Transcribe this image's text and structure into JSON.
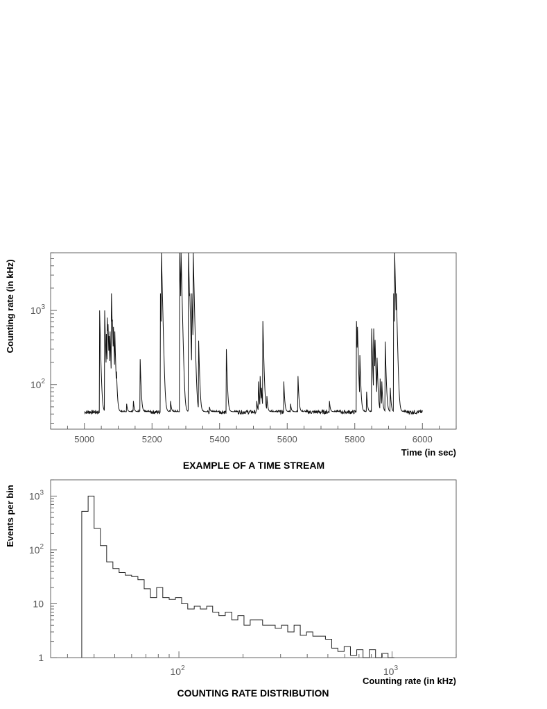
{
  "chart_data": [
    {
      "type": "line",
      "title": "EXAMPLE OF A TIME STREAM",
      "xlabel": "Time (in sec)",
      "ylabel": "Counting rate (in kHz)",
      "xlim": [
        4900,
        6100
      ],
      "ylim": [
        25,
        6000
      ],
      "yscale": "log",
      "x_ticks": [
        5000,
        5200,
        5400,
        5600,
        5800,
        6000
      ],
      "y_ticks": [
        {
          "base": "10",
          "exp": "2",
          "value": 100
        },
        {
          "base": "10",
          "exp": "3",
          "value": 1000
        }
      ],
      "baseline_kHz": 43,
      "series": [
        {
          "x_range": [
            5000,
            6000
          ],
          "spikes": [
            {
              "t": 5045,
              "v": 1000
            },
            {
              "t": 5050,
              "v": 95
            },
            {
              "t": 5060,
              "v": 1000
            },
            {
              "t": 5065,
              "v": 480
            },
            {
              "t": 5068,
              "v": 800
            },
            {
              "t": 5070,
              "v": 650
            },
            {
              "t": 5073,
              "v": 450
            },
            {
              "t": 5076,
              "v": 520
            },
            {
              "t": 5080,
              "v": 1700
            },
            {
              "t": 5083,
              "v": 750
            },
            {
              "t": 5086,
              "v": 600
            },
            {
              "t": 5090,
              "v": 520
            },
            {
              "t": 5095,
              "v": 150
            },
            {
              "t": 5125,
              "v": 55
            },
            {
              "t": 5145,
              "v": 60
            },
            {
              "t": 5165,
              "v": 220
            },
            {
              "t": 5225,
              "v": 1700
            },
            {
              "t": 5228,
              "v": 6000
            },
            {
              "t": 5255,
              "v": 60
            },
            {
              "t": 5282,
              "v": 6000
            },
            {
              "t": 5286,
              "v": 6000
            },
            {
              "t": 5308,
              "v": 6000
            },
            {
              "t": 5312,
              "v": 1700
            },
            {
              "t": 5318,
              "v": 1700
            },
            {
              "t": 5322,
              "v": 6000
            },
            {
              "t": 5326,
              "v": 1000
            },
            {
              "t": 5338,
              "v": 390
            },
            {
              "t": 5370,
              "v": 50
            },
            {
              "t": 5420,
              "v": 300
            },
            {
              "t": 5424,
              "v": 50
            },
            {
              "t": 5510,
              "v": 60
            },
            {
              "t": 5515,
              "v": 110
            },
            {
              "t": 5520,
              "v": 130
            },
            {
              "t": 5524,
              "v": 90
            },
            {
              "t": 5528,
              "v": 720
            },
            {
              "t": 5532,
              "v": 120
            },
            {
              "t": 5540,
              "v": 70
            },
            {
              "t": 5590,
              "v": 110
            },
            {
              "t": 5610,
              "v": 55
            },
            {
              "t": 5632,
              "v": 130
            },
            {
              "t": 5725,
              "v": 60
            },
            {
              "t": 5805,
              "v": 720
            },
            {
              "t": 5808,
              "v": 600
            },
            {
              "t": 5815,
              "v": 250
            },
            {
              "t": 5835,
              "v": 80
            },
            {
              "t": 5850,
              "v": 570
            },
            {
              "t": 5856,
              "v": 570
            },
            {
              "t": 5860,
              "v": 400
            },
            {
              "t": 5866,
              "v": 230
            },
            {
              "t": 5875,
              "v": 120
            },
            {
              "t": 5880,
              "v": 110
            },
            {
              "t": 5890,
              "v": 380
            },
            {
              "t": 5905,
              "v": 90
            },
            {
              "t": 5915,
              "v": 1700
            },
            {
              "t": 5918,
              "v": 6000
            },
            {
              "t": 5920,
              "v": 1700
            },
            {
              "t": 5923,
              "v": 1700
            }
          ]
        }
      ]
    },
    {
      "type": "histogram",
      "title": "COUNTING RATE DISTRIBUTION",
      "xlabel": "Counting rate (in kHz)",
      "ylabel": "Events per bin",
      "xscale": "log",
      "yscale": "log",
      "xlim": [
        25,
        2000
      ],
      "ylim": [
        1,
        2000
      ],
      "x_ticks": [
        {
          "base": "10",
          "exp": "2",
          "value": 100
        },
        {
          "base": "10",
          "exp": "3",
          "value": 1000
        }
      ],
      "y_ticks": [
        {
          "base": "1",
          "exp": "",
          "value": 1
        },
        {
          "base": "10",
          "exp": "",
          "value": 10
        },
        {
          "base": "10",
          "exp": "2",
          "value": 100
        },
        {
          "base": "10",
          "exp": "3",
          "value": 1000
        }
      ],
      "bin_left_edges": [
        35,
        37.5,
        40,
        42.8,
        45.8,
        49,
        52.4,
        56,
        60,
        64.2,
        68.7,
        73.5,
        78.6,
        84,
        90,
        96.3,
        103,
        110,
        118,
        126,
        135,
        144,
        154,
        165,
        177,
        189,
        202,
        216,
        231,
        247,
        265,
        283,
        303,
        324,
        347,
        371,
        397,
        425,
        455,
        487,
        521,
        557,
        596,
        638,
        683,
        731,
        782,
        837,
        895,
        958,
        1025
      ],
      "bin_counts": [
        520,
        1000,
        250,
        120,
        60,
        45,
        38,
        34,
        32,
        28,
        19,
        13,
        20,
        13,
        12,
        13,
        10,
        8,
        9,
        8,
        9,
        7,
        6,
        7,
        5,
        6,
        4,
        5,
        5,
        4,
        4,
        3.5,
        4,
        3,
        4,
        2.6,
        3,
        2.5,
        2.5,
        2.2,
        1.5,
        1.3,
        1.6,
        1.1,
        1.4,
        1,
        1.4,
        1,
        1.2,
        1
      ]
    }
  ]
}
